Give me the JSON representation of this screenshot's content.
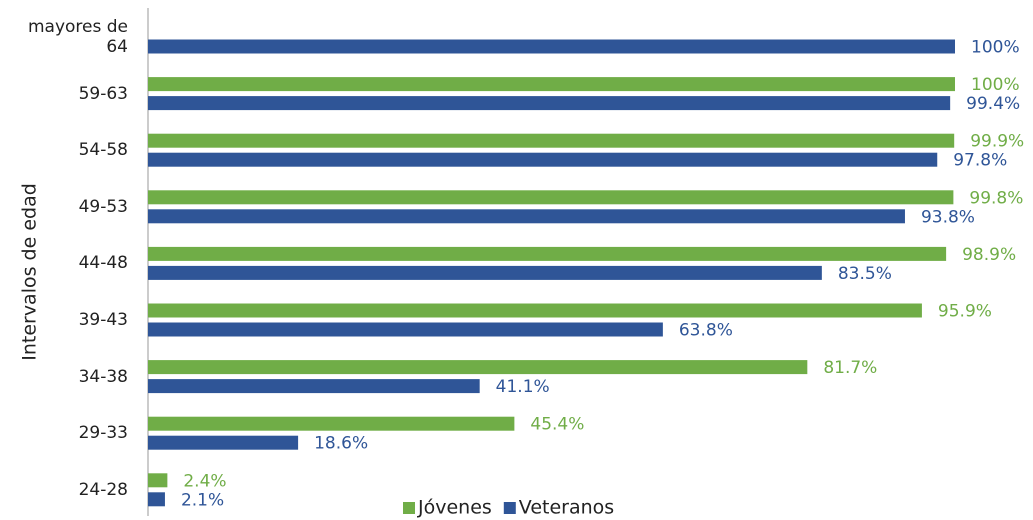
{
  "chart_data": {
    "type": "hbar",
    "y_label": "Intervalos de edad",
    "categories": [
      "mayores de 64",
      "59-63",
      "54-58",
      "49-53",
      "44-48",
      "39-43",
      "34-38",
      "29-33",
      "24-28"
    ],
    "series": [
      {
        "name": "Jóvenes",
        "color": "#70ad47",
        "values": [
          null,
          100,
          99.9,
          99.8,
          98.9,
          95.9,
          81.7,
          45.4,
          2.4
        ],
        "value_labels": [
          null,
          "100%",
          "99.9%",
          "99.8%",
          "98.9%",
          "95.9%",
          "81.7%",
          "45.4%",
          "2.4%"
        ]
      },
      {
        "name": "Veteranos",
        "color": "#2f5597",
        "values": [
          100,
          99.4,
          97.8,
          93.8,
          83.5,
          63.8,
          41.1,
          18.6,
          2.1
        ],
        "value_labels": [
          "100%",
          "99.4%",
          "97.8%",
          "93.8%",
          "83.5%",
          "63.8%",
          "41.1%",
          "18.6%",
          "2.1%"
        ]
      }
    ],
    "xlim": [
      0,
      100
    ],
    "legend": "bottom"
  }
}
